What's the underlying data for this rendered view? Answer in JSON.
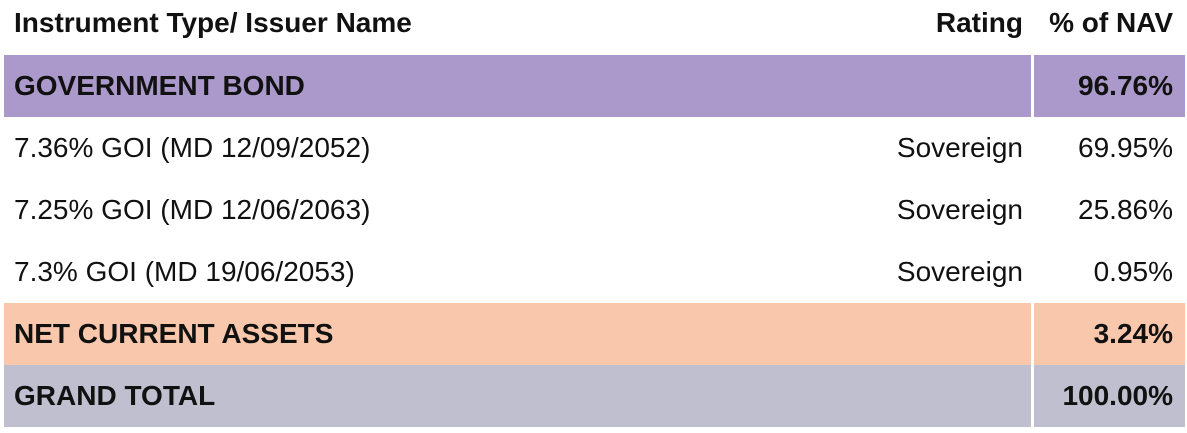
{
  "table": {
    "header": [
      "Instrument Type/ Issuer Name",
      "Rating",
      "% of NAV"
    ],
    "rows": [
      {
        "name": "GOVERNMENT BOND",
        "nav": "96.76%",
        "color": "#ab99cb"
      },
      {
        "name": "7.36% GOI (MD 12/09/2052)",
        "rating": "Sovereign",
        "nav": "69.95%"
      },
      {
        "name": "7.25% GOI (MD 12/06/2063)",
        "rating": "Sovereign",
        "nav": "25.86%"
      },
      {
        "name": "7.3% GOI (MD 19/06/2053)",
        "rating": "Sovereign",
        "nav": "0.95%"
      },
      {
        "name": "NET CURRENT ASSETS",
        "nav": "3.24%",
        "color": "#f9c8ac"
      },
      {
        "name": "GRAND TOTAL",
        "nav": "100.00%",
        "color": "#bfbfcf"
      }
    ]
  }
}
